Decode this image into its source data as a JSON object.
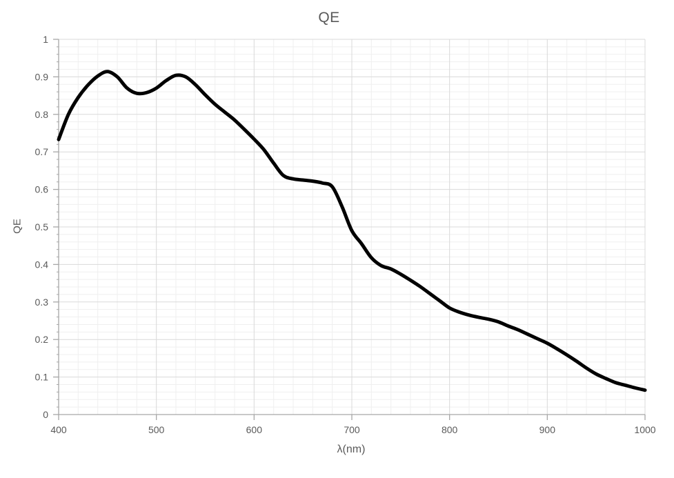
{
  "chart": {
    "title": "QE",
    "x_axis_label": "λ(nm)",
    "y_axis_label": "QE"
  },
  "chart_data": {
    "type": "line",
    "title": "QE",
    "xlabel": "λ(nm)",
    "ylabel": "QE",
    "xlim": [
      400,
      1000
    ],
    "ylim": [
      0,
      1
    ],
    "x_tick_labels": [
      "400",
      "500",
      "600",
      "700",
      "800",
      "900",
      "1000"
    ],
    "x_tick_values": [
      400,
      500,
      600,
      700,
      800,
      900,
      1000
    ],
    "y_tick_labels": [
      "0",
      "0.1",
      "0.2",
      "0.3",
      "0.4",
      "0.5",
      "0.6",
      "0.7",
      "0.8",
      "0.9",
      "1"
    ],
    "y_tick_values": [
      0,
      0.1,
      0.2,
      0.3,
      0.4,
      0.5,
      0.6,
      0.7,
      0.8,
      0.9,
      1
    ],
    "x_minor_step": 20,
    "y_minor_step": 0.02,
    "grid": "major-and-minor",
    "legend": "none",
    "smoothed": true,
    "series_name": "QE",
    "x": [
      400,
      410,
      420,
      430,
      440,
      450,
      460,
      470,
      480,
      490,
      500,
      510,
      520,
      530,
      540,
      550,
      560,
      570,
      580,
      590,
      600,
      610,
      620,
      630,
      640,
      650,
      660,
      670,
      680,
      690,
      700,
      710,
      720,
      730,
      740,
      750,
      760,
      770,
      780,
      790,
      800,
      810,
      820,
      830,
      840,
      850,
      860,
      870,
      880,
      890,
      900,
      910,
      920,
      930,
      940,
      950,
      960,
      970,
      980,
      990,
      1000
    ],
    "y": [
      0.733,
      0.8,
      0.845,
      0.878,
      0.902,
      0.914,
      0.9,
      0.87,
      0.856,
      0.858,
      0.87,
      0.89,
      0.904,
      0.9,
      0.879,
      0.852,
      0.827,
      0.806,
      0.785,
      0.76,
      0.734,
      0.706,
      0.67,
      0.637,
      0.628,
      0.625,
      0.622,
      0.617,
      0.607,
      0.554,
      0.49,
      0.455,
      0.418,
      0.397,
      0.388,
      0.374,
      0.358,
      0.341,
      0.322,
      0.303,
      0.284,
      0.273,
      0.265,
      0.259,
      0.254,
      0.247,
      0.236,
      0.226,
      0.214,
      0.202,
      0.19,
      0.175,
      0.159,
      0.142,
      0.124,
      0.108,
      0.096,
      0.085,
      0.078,
      0.071,
      0.065
    ]
  },
  "colors": {
    "background": "#ffffff",
    "curve": "#000000",
    "major_grid": "#d9d9d9",
    "minor_grid": "#efefef",
    "axis": "#a6a6a6",
    "tick_label": "#595959",
    "title": "#595959"
  }
}
